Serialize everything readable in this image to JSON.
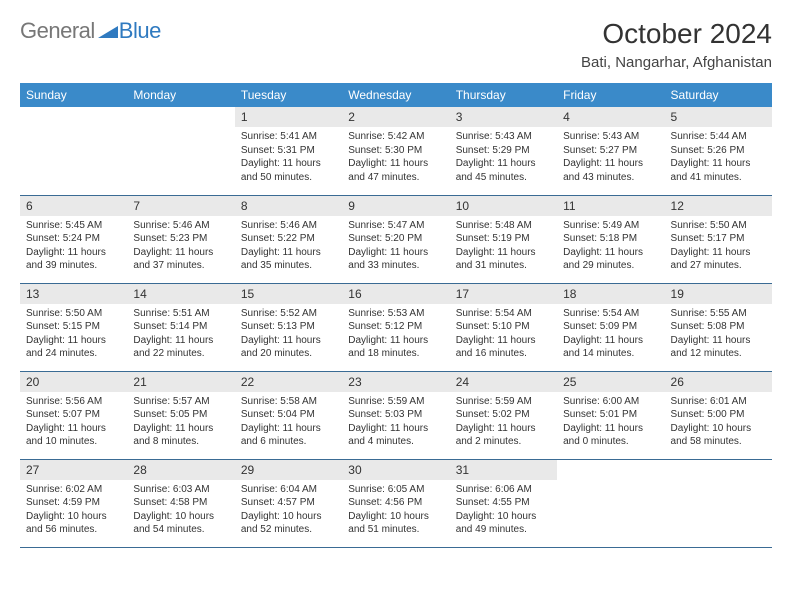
{
  "brand": {
    "part1": "General",
    "part2": "Blue"
  },
  "header": {
    "title": "October 2024",
    "subtitle": "Bati, Nangarhar, Afghanistan"
  },
  "colors": {
    "header_bg": "#3a8ac9",
    "header_fg": "#ffffff",
    "day_bg": "#e9e9e9",
    "rule": "#3a6b94",
    "brand_blue": "#2f7ac0",
    "text": "#333333"
  },
  "typography": {
    "title_pt": 28,
    "subtitle_pt": 15,
    "dayhead_pt": 12,
    "detail_pt": 10
  },
  "days": [
    "Sunday",
    "Monday",
    "Tuesday",
    "Wednesday",
    "Thursday",
    "Friday",
    "Saturday"
  ],
  "weeks": [
    [
      null,
      null,
      {
        "n": "1",
        "sr": "5:41 AM",
        "ss": "5:31 PM",
        "dl": "11 hours and 50 minutes."
      },
      {
        "n": "2",
        "sr": "5:42 AM",
        "ss": "5:30 PM",
        "dl": "11 hours and 47 minutes."
      },
      {
        "n": "3",
        "sr": "5:43 AM",
        "ss": "5:29 PM",
        "dl": "11 hours and 45 minutes."
      },
      {
        "n": "4",
        "sr": "5:43 AM",
        "ss": "5:27 PM",
        "dl": "11 hours and 43 minutes."
      },
      {
        "n": "5",
        "sr": "5:44 AM",
        "ss": "5:26 PM",
        "dl": "11 hours and 41 minutes."
      }
    ],
    [
      {
        "n": "6",
        "sr": "5:45 AM",
        "ss": "5:24 PM",
        "dl": "11 hours and 39 minutes."
      },
      {
        "n": "7",
        "sr": "5:46 AM",
        "ss": "5:23 PM",
        "dl": "11 hours and 37 minutes."
      },
      {
        "n": "8",
        "sr": "5:46 AM",
        "ss": "5:22 PM",
        "dl": "11 hours and 35 minutes."
      },
      {
        "n": "9",
        "sr": "5:47 AM",
        "ss": "5:20 PM",
        "dl": "11 hours and 33 minutes."
      },
      {
        "n": "10",
        "sr": "5:48 AM",
        "ss": "5:19 PM",
        "dl": "11 hours and 31 minutes."
      },
      {
        "n": "11",
        "sr": "5:49 AM",
        "ss": "5:18 PM",
        "dl": "11 hours and 29 minutes."
      },
      {
        "n": "12",
        "sr": "5:50 AM",
        "ss": "5:17 PM",
        "dl": "11 hours and 27 minutes."
      }
    ],
    [
      {
        "n": "13",
        "sr": "5:50 AM",
        "ss": "5:15 PM",
        "dl": "11 hours and 24 minutes."
      },
      {
        "n": "14",
        "sr": "5:51 AM",
        "ss": "5:14 PM",
        "dl": "11 hours and 22 minutes."
      },
      {
        "n": "15",
        "sr": "5:52 AM",
        "ss": "5:13 PM",
        "dl": "11 hours and 20 minutes."
      },
      {
        "n": "16",
        "sr": "5:53 AM",
        "ss": "5:12 PM",
        "dl": "11 hours and 18 minutes."
      },
      {
        "n": "17",
        "sr": "5:54 AM",
        "ss": "5:10 PM",
        "dl": "11 hours and 16 minutes."
      },
      {
        "n": "18",
        "sr": "5:54 AM",
        "ss": "5:09 PM",
        "dl": "11 hours and 14 minutes."
      },
      {
        "n": "19",
        "sr": "5:55 AM",
        "ss": "5:08 PM",
        "dl": "11 hours and 12 minutes."
      }
    ],
    [
      {
        "n": "20",
        "sr": "5:56 AM",
        "ss": "5:07 PM",
        "dl": "11 hours and 10 minutes."
      },
      {
        "n": "21",
        "sr": "5:57 AM",
        "ss": "5:05 PM",
        "dl": "11 hours and 8 minutes."
      },
      {
        "n": "22",
        "sr": "5:58 AM",
        "ss": "5:04 PM",
        "dl": "11 hours and 6 minutes."
      },
      {
        "n": "23",
        "sr": "5:59 AM",
        "ss": "5:03 PM",
        "dl": "11 hours and 4 minutes."
      },
      {
        "n": "24",
        "sr": "5:59 AM",
        "ss": "5:02 PM",
        "dl": "11 hours and 2 minutes."
      },
      {
        "n": "25",
        "sr": "6:00 AM",
        "ss": "5:01 PM",
        "dl": "11 hours and 0 minutes."
      },
      {
        "n": "26",
        "sr": "6:01 AM",
        "ss": "5:00 PM",
        "dl": "10 hours and 58 minutes."
      }
    ],
    [
      {
        "n": "27",
        "sr": "6:02 AM",
        "ss": "4:59 PM",
        "dl": "10 hours and 56 minutes."
      },
      {
        "n": "28",
        "sr": "6:03 AM",
        "ss": "4:58 PM",
        "dl": "10 hours and 54 minutes."
      },
      {
        "n": "29",
        "sr": "6:04 AM",
        "ss": "4:57 PM",
        "dl": "10 hours and 52 minutes."
      },
      {
        "n": "30",
        "sr": "6:05 AM",
        "ss": "4:56 PM",
        "dl": "10 hours and 51 minutes."
      },
      {
        "n": "31",
        "sr": "6:06 AM",
        "ss": "4:55 PM",
        "dl": "10 hours and 49 minutes."
      },
      null,
      null
    ]
  ],
  "labels": {
    "sunrise": "Sunrise:",
    "sunset": "Sunset:",
    "daylight": "Daylight:"
  }
}
